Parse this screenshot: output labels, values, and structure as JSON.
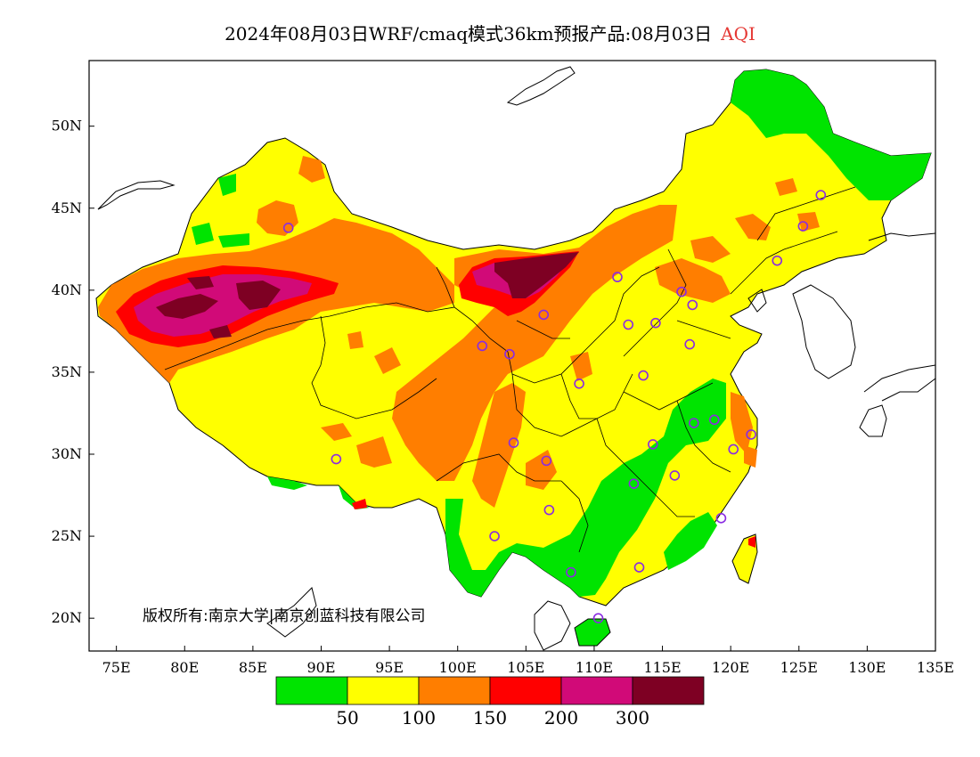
{
  "title": {
    "main": "2024年08月03日WRF/cmaq模式36km预报产品:08月03日",
    "variable": "AQI"
  },
  "copyright": "版权所有:南京大学|南京创蓝科技有限公司",
  "axes": {
    "x_ticks": [
      "75E",
      "80E",
      "85E",
      "90E",
      "95E",
      "100E",
      "105E",
      "110E",
      "115E",
      "120E",
      "125E",
      "130E",
      "135E"
    ],
    "y_ticks": [
      "50N",
      "45N",
      "40N",
      "35N",
      "30N",
      "25N",
      "20N"
    ],
    "lon_range": [
      73,
      135
    ],
    "lat_range": [
      18,
      54
    ]
  },
  "legend": {
    "colors": [
      "#00e400",
      "#ffff00",
      "#ff7e00",
      "#ff0000",
      "#d10a78",
      "#7e0023"
    ],
    "labels": [
      "50",
      "100",
      "150",
      "200",
      "300"
    ]
  },
  "colors": {
    "good": "#00e400",
    "moderate": "#ffff00",
    "usg": "#ff7e00",
    "unhealthy": "#ff0000",
    "very_unhealthy": "#d10a78",
    "hazardous": "#7e0023",
    "station_marker": "#8a2be2"
  },
  "stations": [
    {
      "lon": 87.6,
      "lat": 43.8
    },
    {
      "lon": 91.1,
      "lat": 29.7
    },
    {
      "lon": 101.8,
      "lat": 36.6
    },
    {
      "lon": 103.8,
      "lat": 36.1
    },
    {
      "lon": 106.3,
      "lat": 38.5
    },
    {
      "lon": 111.7,
      "lat": 40.8
    },
    {
      "lon": 112.5,
      "lat": 37.9
    },
    {
      "lon": 114.5,
      "lat": 38.0
    },
    {
      "lon": 116.4,
      "lat": 39.9
    },
    {
      "lon": 117.2,
      "lat": 39.1
    },
    {
      "lon": 117.0,
      "lat": 36.7
    },
    {
      "lon": 113.6,
      "lat": 34.8
    },
    {
      "lon": 108.9,
      "lat": 34.3
    },
    {
      "lon": 104.1,
      "lat": 30.7
    },
    {
      "lon": 106.5,
      "lat": 29.6
    },
    {
      "lon": 106.7,
      "lat": 26.6
    },
    {
      "lon": 102.7,
      "lat": 25.0
    },
    {
      "lon": 108.3,
      "lat": 22.8
    },
    {
      "lon": 113.3,
      "lat": 23.1
    },
    {
      "lon": 110.3,
      "lat": 20.0
    },
    {
      "lon": 112.9,
      "lat": 28.2
    },
    {
      "lon": 114.3,
      "lat": 30.6
    },
    {
      "lon": 115.9,
      "lat": 28.7
    },
    {
      "lon": 117.3,
      "lat": 31.9
    },
    {
      "lon": 118.8,
      "lat": 32.1
    },
    {
      "lon": 120.2,
      "lat": 30.3
    },
    {
      "lon": 121.5,
      "lat": 31.2
    },
    {
      "lon": 119.3,
      "lat": 26.1
    },
    {
      "lon": 123.4,
      "lat": 41.8
    },
    {
      "lon": 125.3,
      "lat": 43.9
    },
    {
      "lon": 126.6,
      "lat": 45.8
    }
  ]
}
